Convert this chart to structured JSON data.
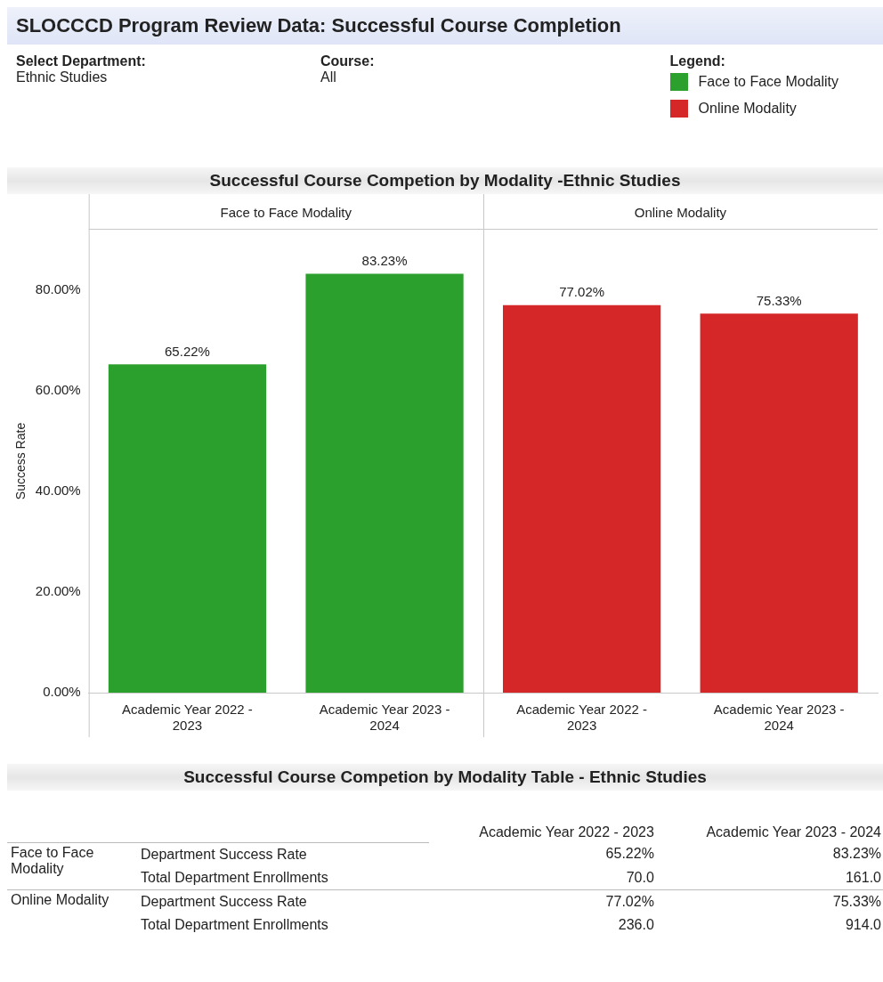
{
  "chart_data": [
    {
      "type": "bar",
      "title": "SLOCCCD Program Review Data: Successful Course Completion",
      "subtitle": "Successful Course Competion by Modality -Ethnic Studies",
      "annotations": [
        "Select Department:",
        "Ethnic Studies",
        "Course:",
        "All"
      ],
      "legend_title": "Legend:",
      "legend": "top right",
      "ylabel": "Success Rate",
      "grid": false,
      "categories": [
        "Academic Year 2022 - 2023",
        "Academic Year 2023 - 2024",
        "Academic Year 2022 - 2023",
        "Academic Year 2023 - 2024"
      ],
      "series": [
        {
          "name": "Face to Face Modality",
          "color": "#2ca02c",
          "values": [
            65.22,
            83.23,
            null,
            null
          ],
          "value_labels": [
            "65.22%",
            "83.23%",
            null,
            null
          ]
        },
        {
          "name": "Online Modality",
          "color": "#d62728",
          "values": [
            null,
            null,
            77.02,
            75.33
          ],
          "value_labels": [
            null,
            null,
            "77.02%",
            "75.33%"
          ]
        }
      ],
      "ylim": [
        0,
        92
      ],
      "yticks": [
        {
          "value": 0,
          "label": "0.00%"
        },
        {
          "value": 20,
          "label": "20.00%"
        },
        {
          "value": 40,
          "label": "40.00%"
        },
        {
          "value": 60,
          "label": "60.00%"
        },
        {
          "value": 80,
          "label": "80.00%"
        }
      ]
    },
    {
      "type": "other",
      "title": "Successful Course Competion by Modality Table - Ethnic Studies",
      "categories": [
        "Academic Year 2022 - 2023",
        "Academic Year 2023 - 2024"
      ],
      "annotations": [
        "Face to Face Modality",
        "Online Modality"
      ],
      "y_categories": [
        "Department Success Rate",
        "Total Department Enrollments",
        "Department Success Rate",
        "Total Department Enrollments"
      ],
      "cell_labels": [
        [
          "65.22%",
          "83.23%"
        ],
        [
          "70.0",
          "161.0"
        ],
        [
          "77.02%",
          "75.33%"
        ],
        [
          "236.0",
          "914.0"
        ]
      ]
    }
  ]
}
